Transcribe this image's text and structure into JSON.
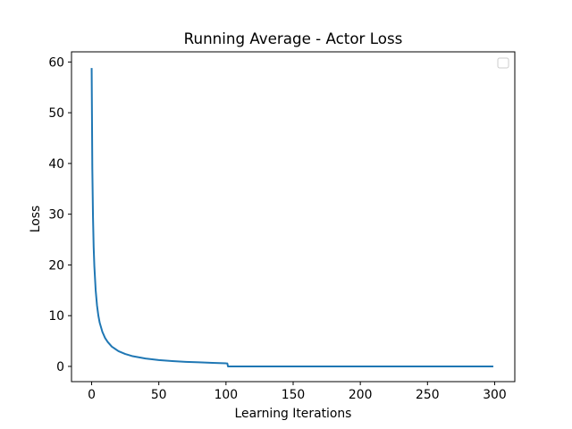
{
  "chart_data": {
    "type": "line",
    "title": "Running Average - Actor Loss",
    "xlabel": "Learning Iterations",
    "ylabel": "Loss",
    "xlim": [
      -15,
      315
    ],
    "ylim": [
      -3,
      62
    ],
    "xticks": [
      0,
      50,
      100,
      150,
      200,
      250,
      300
    ],
    "yticks": [
      0,
      10,
      20,
      30,
      40,
      50,
      60
    ],
    "grid": false,
    "legend": {
      "placement": "top-right",
      "entries": []
    },
    "series": [
      {
        "color": "#1f77b4",
        "x": [
          0,
          0.5,
          1,
          1.5,
          2,
          3,
          4,
          5,
          6,
          8,
          10,
          12,
          15,
          20,
          25,
          30,
          40,
          50,
          60,
          70,
          80,
          90,
          100,
          101,
          101.5,
          102,
          150,
          200,
          250,
          299
        ],
        "y": [
          58.8,
          39,
          29.5,
          23.5,
          19.8,
          15,
          12,
          10,
          8.6,
          6.8,
          5.6,
          4.8,
          3.9,
          3.0,
          2.45,
          2.05,
          1.55,
          1.25,
          1.05,
          0.9,
          0.8,
          0.7,
          0.6,
          0.58,
          0,
          0,
          0,
          0,
          0,
          0
        ]
      }
    ]
  }
}
